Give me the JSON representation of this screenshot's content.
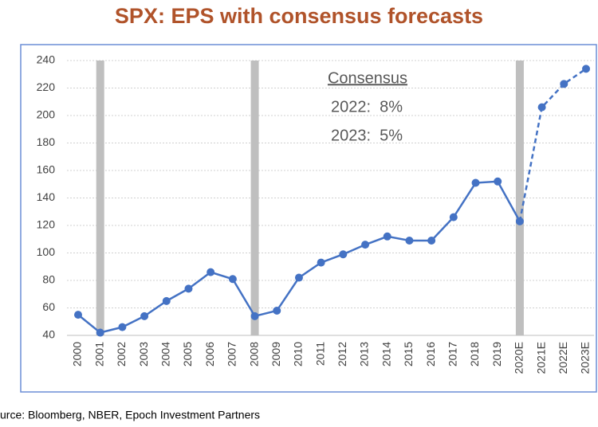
{
  "chart_data": {
    "type": "line",
    "title": "SPX: EPS with consensus forecasts",
    "categories": [
      "2000",
      "2001",
      "2002",
      "2003",
      "2004",
      "2005",
      "2006",
      "2007",
      "2008",
      "2009",
      "2010",
      "2011",
      "2012",
      "2013",
      "2014",
      "2015",
      "2016",
      "2017",
      "2018",
      "2019",
      "2020E",
      "2021E",
      "2022E",
      "2023E"
    ],
    "series": [
      {
        "color": "#4472c4",
        "values": [
          55,
          42,
          46,
          54,
          65,
          74,
          86,
          81,
          54,
          58,
          82,
          93,
          99,
          106,
          112,
          109,
          109,
          126,
          151,
          152,
          123,
          206,
          223,
          234
        ]
      }
    ],
    "dashed_from": "2020E",
    "shaded_categories": [
      "2001",
      "2008",
      "2020E"
    ],
    "shade_color": "#bfbfbf",
    "ylim": [
      40,
      240
    ],
    "yticks": [
      40,
      60,
      80,
      100,
      120,
      140,
      160,
      180,
      200,
      220,
      240
    ],
    "grid": true,
    "annotations": [
      "Consensus",
      "2022:  8%",
      "2023:  5%"
    ],
    "source": "urce: Bloomberg, NBER, Epoch Investment Partners"
  }
}
